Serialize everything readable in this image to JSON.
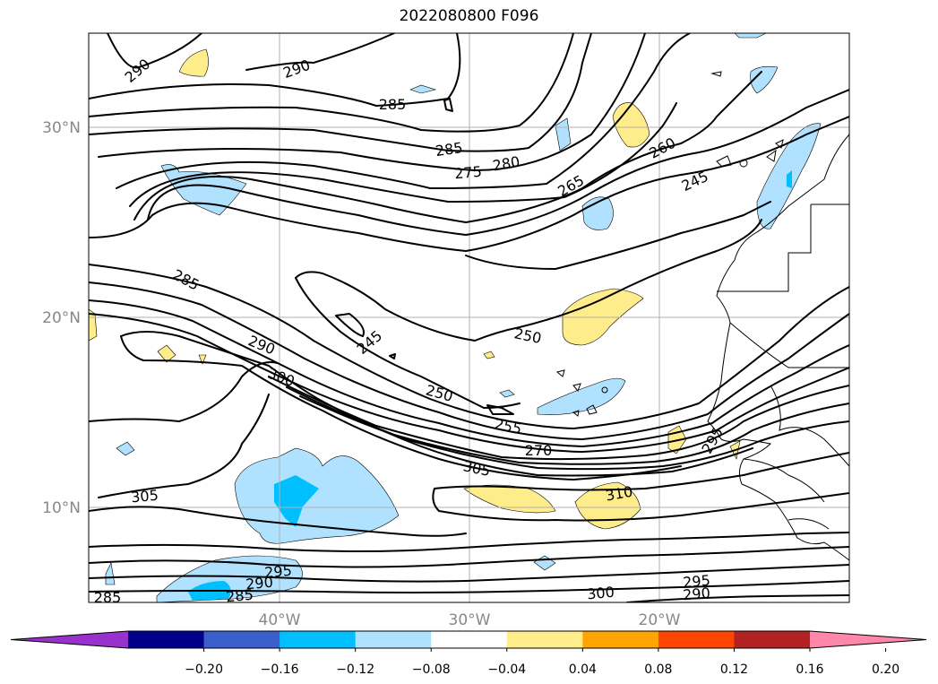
{
  "title": "2022080800 F096",
  "map": {
    "lat_ticks": [
      {
        "label": "30°N",
        "lat": 30
      },
      {
        "label": "20°N",
        "lat": 20
      },
      {
        "label": "10°N",
        "lat": 10
      }
    ],
    "lon_ticks": [
      {
        "label": "40°W",
        "lon": -40
      },
      {
        "label": "30°W",
        "lon": -30
      },
      {
        "label": "20°W",
        "lon": -20
      }
    ],
    "lon_range": [
      -50,
      -10
    ],
    "lat_range": [
      5,
      35
    ],
    "grid": true
  },
  "contour_labels": [
    {
      "text": "290",
      "rot": -40
    },
    {
      "text": "290",
      "rot": -20
    },
    {
      "text": "285",
      "rot": 0
    },
    {
      "text": "285",
      "rot": -8
    },
    {
      "text": "280",
      "rot": -10
    },
    {
      "text": "275",
      "rot": -5
    },
    {
      "text": "265",
      "rot": -30
    },
    {
      "text": "260",
      "rot": -28
    },
    {
      "text": "245",
      "rot": -25
    },
    {
      "text": "285",
      "rot": 28
    },
    {
      "text": "245",
      "rot": -40
    },
    {
      "text": "250",
      "rot": 12
    },
    {
      "text": "290",
      "rot": 22
    },
    {
      "text": "300",
      "rot": 20
    },
    {
      "text": "250",
      "rot": 15
    },
    {
      "text": "255",
      "rot": 12
    },
    {
      "text": "270",
      "rot": 0
    },
    {
      "text": "305",
      "rot": 12
    },
    {
      "text": "310",
      "rot": -10
    },
    {
      "text": "305",
      "rot": -5
    },
    {
      "text": "295",
      "rot": -5
    },
    {
      "text": "290",
      "rot": -5
    },
    {
      "text": "285",
      "rot": -5
    },
    {
      "text": "285",
      "rot": 0
    },
    {
      "text": "300",
      "rot": -5
    },
    {
      "text": "295",
      "rot": -5
    },
    {
      "text": "290",
      "rot": -5
    },
    {
      "text": "295",
      "rot": -60
    }
  ],
  "colorbar": {
    "ticks": [
      "−0.20",
      "−0.16",
      "−0.12",
      "−0.08",
      "−0.04",
      "0.04",
      "0.08",
      "0.12",
      "0.16",
      "0.20"
    ],
    "colors": [
      "#9932cc",
      "#00008b",
      "#3a5fcd",
      "#00bfff",
      "#b0e2ff",
      "#ffffff",
      "#ffec8b",
      "#ffa500",
      "#ff4500",
      "#b22222",
      "#ff88aa"
    ],
    "extend": "both"
  },
  "fill_colors": {
    "light_blue": "#b0e2ff",
    "blue": "#00bfff",
    "yellow": "#ffec8b"
  }
}
